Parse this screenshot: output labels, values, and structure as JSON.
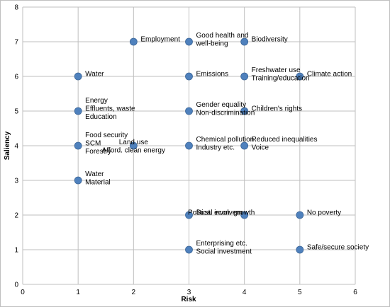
{
  "chart_data": {
    "type": "scatter",
    "title": "",
    "xlabel": "Risk",
    "ylabel": "Saliency",
    "xlim": [
      0,
      6
    ],
    "ylim": [
      0,
      8
    ],
    "x_ticks": [
      "0",
      "1",
      "2",
      "3",
      "4",
      "5",
      "6"
    ],
    "y_ticks": [
      "0",
      "1",
      "2",
      "3",
      "4",
      "5",
      "6",
      "7",
      "8"
    ],
    "grid": true,
    "legend": "none",
    "marker_color": "#4F81BD",
    "points": [
      {
        "x": 1,
        "y": 6,
        "label": "Water",
        "anchor": "right"
      },
      {
        "x": 1,
        "y": 5,
        "label": "Energy\nEffluents, waste\nEducation",
        "anchor": "right"
      },
      {
        "x": 1,
        "y": 4,
        "label": "Food security\nSCM\nForestry",
        "anchor": "right"
      },
      {
        "x": 1,
        "y": 3,
        "label": "Water\nMaterial",
        "anchor": "right"
      },
      {
        "x": 2,
        "y": 7,
        "label": "Employment",
        "anchor": "right"
      },
      {
        "x": 2,
        "y": 4,
        "label": "Land use\nAfford. clean energy",
        "anchor": "center"
      },
      {
        "x": 3,
        "y": 7,
        "label": "Good health and\nwell-being",
        "anchor": "right"
      },
      {
        "x": 3,
        "y": 6,
        "label": "Emissions",
        "anchor": "right"
      },
      {
        "x": 3,
        "y": 5,
        "label": "Gender equality\nNon-discrimination",
        "anchor": "right"
      },
      {
        "x": 3,
        "y": 4,
        "label": "Chemical pollution\nIndustry etc.",
        "anchor": "right"
      },
      {
        "x": 3,
        "y": 2,
        "label": "Sust. econ. growth",
        "anchor": "right"
      },
      {
        "x": 3,
        "y": 1,
        "label": "Enterprising etc.\nSocial investment",
        "anchor": "right"
      },
      {
        "x": 4,
        "y": 7,
        "label": "Biodiversity",
        "anchor": "right"
      },
      {
        "x": 4,
        "y": 6,
        "label": "Freshwater use\nTraining/education",
        "anchor": "right"
      },
      {
        "x": 4,
        "y": 5,
        "label": "Children's rights",
        "anchor": "right"
      },
      {
        "x": 4,
        "y": 4,
        "label": "Reduced inequalities\nVoice",
        "anchor": "right"
      },
      {
        "x": 4,
        "y": 2,
        "label": "Political involvem",
        "anchor": "left"
      },
      {
        "x": 5,
        "y": 6,
        "label": "Climate action",
        "anchor": "right"
      },
      {
        "x": 5,
        "y": 2,
        "label": "No poverty",
        "anchor": "right"
      },
      {
        "x": 5,
        "y": 1,
        "label": "Safe/secure society",
        "anchor": "right"
      }
    ]
  }
}
